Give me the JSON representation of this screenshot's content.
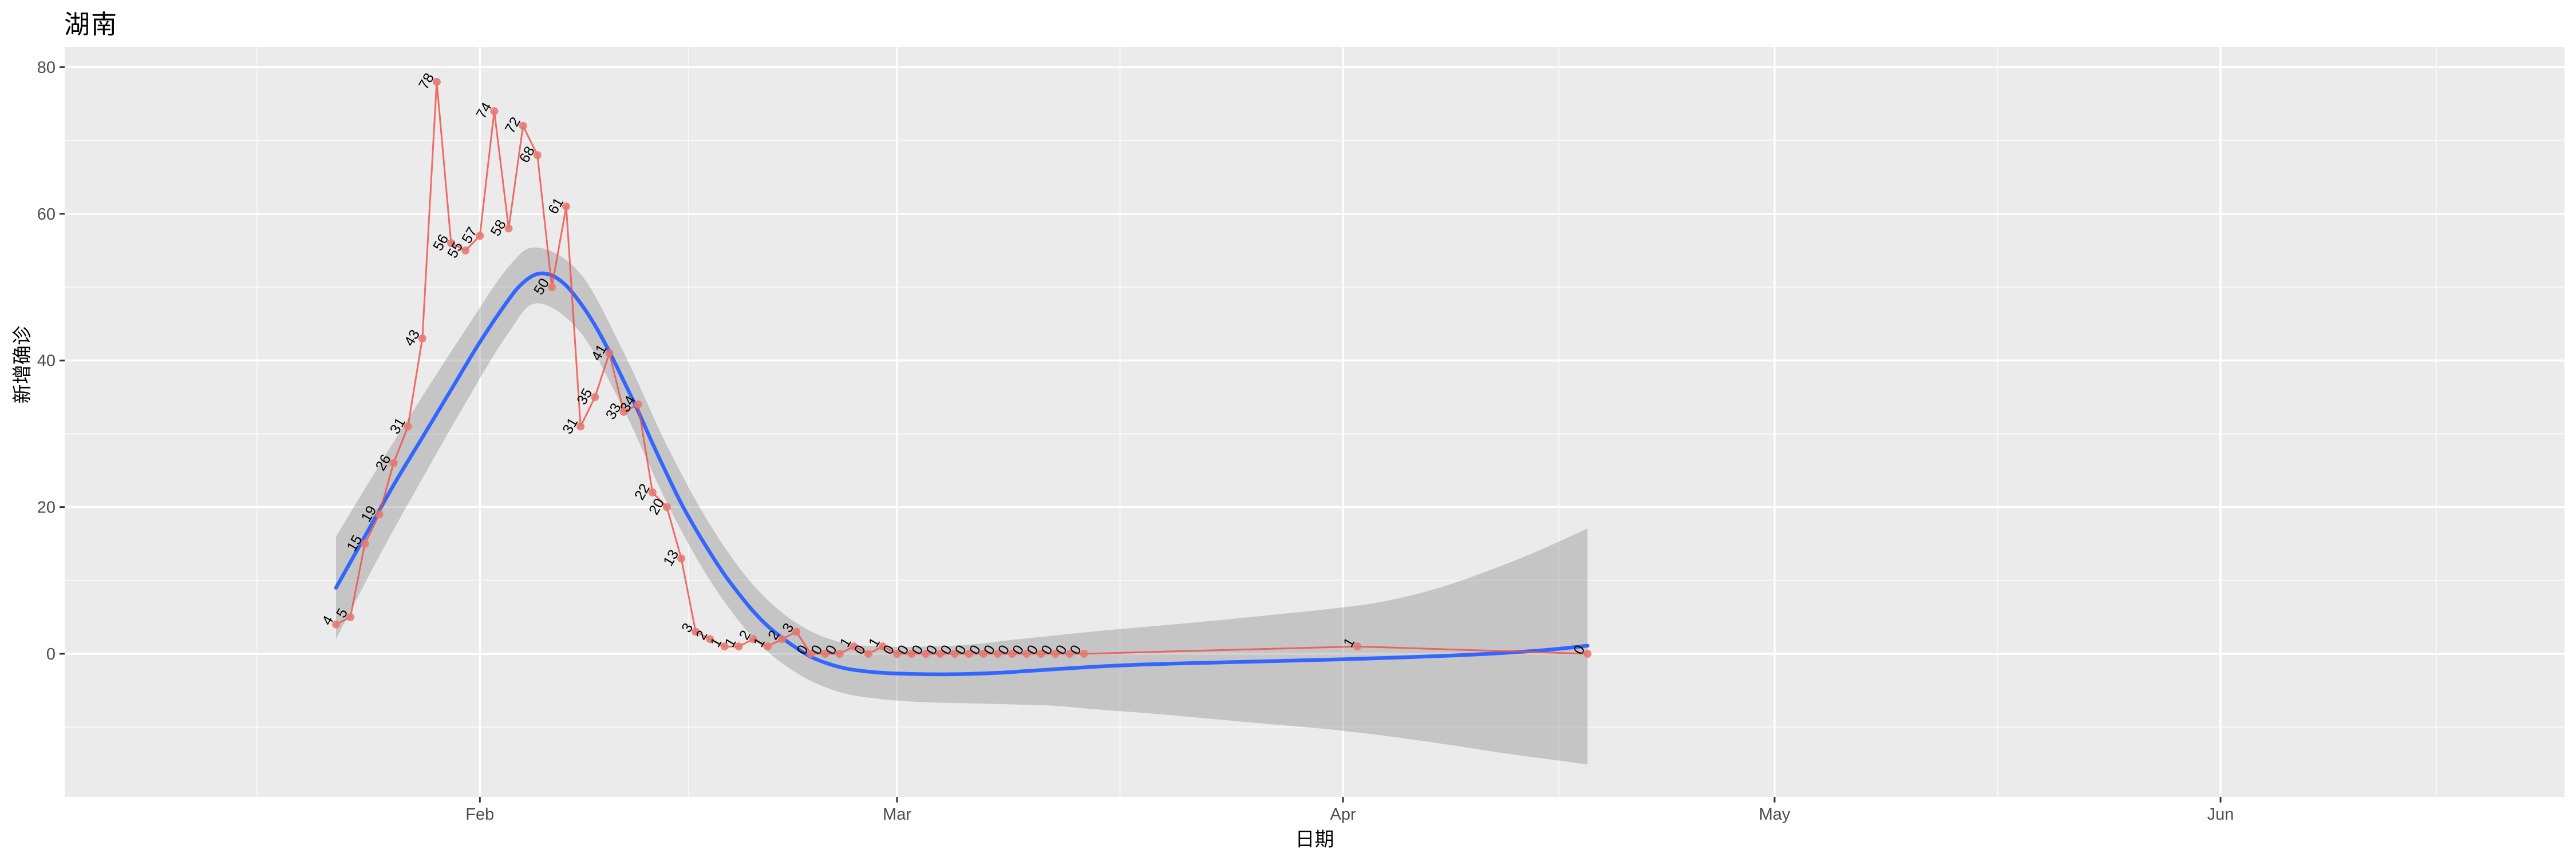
{
  "title": "湖南",
  "x_axis": {
    "title": "日期",
    "tick_labels": [
      "Feb",
      "Mar",
      "Apr",
      "May",
      "Jun"
    ]
  },
  "y_axis": {
    "title": "新增确诊",
    "tick_labels": [
      "0",
      "20",
      "40",
      "60",
      "80"
    ]
  },
  "colors": {
    "panel_bg": "#EBEBEB",
    "grid_major": "#FFFFFF",
    "grid_minor": "rgba(255,255,255,0.6)",
    "band": "rgba(120,120,120,0.33)",
    "smooth_line": "#3366FF",
    "data_line": "rgba(242,75,68,0.8)",
    "data_point": "rgba(229,120,112,0.88)",
    "point_label": "#000000",
    "tick_mark": "#333333",
    "tick_label": "#4D4D4D",
    "axis_title": "#000000",
    "title": "#000000"
  },
  "chart_data": {
    "type": "line",
    "title": "湖南",
    "xlabel": "日期",
    "ylabel": "新增确诊",
    "x_unit": "days (day 0 = first point, ~Jan 22; month ticks below)",
    "ylim": [
      -19.5,
      82.8
    ],
    "xlim_days": [
      -18.9,
      154.9
    ],
    "grid": true,
    "legend": false,
    "y_ticks": [
      0,
      20,
      40,
      60,
      80
    ],
    "y_minor": [
      -10,
      10,
      30,
      50,
      70
    ],
    "x_ticks": [
      {
        "label": "Feb",
        "day": 10
      },
      {
        "label": "Mar",
        "day": 39
      },
      {
        "label": "Apr",
        "day": 70
      },
      {
        "label": "May",
        "day": 100
      },
      {
        "label": "Jun",
        "day": 131
      }
    ],
    "x_minor_days": [
      -5.5,
      24.5,
      54.5,
      85,
      115.5,
      146
    ],
    "series": [
      {
        "name": "daily_new_confirmed",
        "type": "line+point+label",
        "points": [
          [
            0,
            4
          ],
          [
            1,
            5
          ],
          [
            2,
            15
          ],
          [
            3,
            19
          ],
          [
            4,
            26
          ],
          [
            5,
            31
          ],
          [
            6,
            43
          ],
          [
            7,
            78
          ],
          [
            8,
            56
          ],
          [
            9,
            55
          ],
          [
            10,
            57
          ],
          [
            11,
            74
          ],
          [
            12,
            58
          ],
          [
            13,
            72
          ],
          [
            14,
            68
          ],
          [
            15,
            50
          ],
          [
            16,
            61
          ],
          [
            17,
            31
          ],
          [
            18,
            35
          ],
          [
            19,
            41
          ],
          [
            20,
            33
          ],
          [
            21,
            34
          ],
          [
            22,
            22
          ],
          [
            23,
            20
          ],
          [
            24,
            13
          ],
          [
            25,
            3
          ],
          [
            26,
            2
          ],
          [
            27,
            1
          ],
          [
            28,
            1
          ],
          [
            29,
            2
          ],
          [
            30,
            1
          ],
          [
            31,
            2
          ],
          [
            32,
            3
          ],
          [
            33,
            0
          ],
          [
            34,
            0
          ],
          [
            35,
            0
          ],
          [
            36,
            1
          ],
          [
            37,
            0
          ],
          [
            38,
            1
          ],
          [
            39,
            0
          ],
          [
            40,
            0
          ],
          [
            41,
            0
          ],
          [
            42,
            0
          ],
          [
            43,
            0
          ],
          [
            44,
            0
          ],
          [
            45,
            0
          ],
          [
            46,
            0
          ],
          [
            47,
            0
          ],
          [
            48,
            0
          ],
          [
            49,
            0
          ],
          [
            50,
            0
          ],
          [
            51,
            0
          ],
          [
            52,
            0
          ],
          [
            71,
            1
          ],
          [
            87,
            0
          ]
        ]
      },
      {
        "name": "loess_smooth",
        "type": "line",
        "points": [
          [
            0,
            9.0
          ],
          [
            2,
            16
          ],
          [
            4,
            23
          ],
          [
            6,
            29.5
          ],
          [
            8,
            36
          ],
          [
            10,
            42.5
          ],
          [
            12,
            48.3
          ],
          [
            13,
            50.6
          ],
          [
            14,
            51.8
          ],
          [
            15,
            51.6
          ],
          [
            16,
            50.2
          ],
          [
            17,
            47.8
          ],
          [
            18,
            44.8
          ],
          [
            19,
            41.2
          ],
          [
            20,
            37.2
          ],
          [
            21,
            33.1
          ],
          [
            22,
            28.7
          ],
          [
            23,
            24.5
          ],
          [
            24,
            20.5
          ],
          [
            25,
            17.0
          ],
          [
            26,
            13.8
          ],
          [
            27,
            10.8
          ],
          [
            28,
            8.2
          ],
          [
            29,
            5.8
          ],
          [
            30,
            3.8
          ],
          [
            31,
            2.2
          ],
          [
            32,
            0.8
          ],
          [
            33,
            -0.4
          ],
          [
            34,
            -1.2
          ],
          [
            35,
            -1.8
          ],
          [
            36,
            -2.2
          ],
          [
            38,
            -2.6
          ],
          [
            40,
            -2.75
          ],
          [
            42,
            -2.8
          ],
          [
            44,
            -2.75
          ],
          [
            46,
            -2.6
          ],
          [
            48,
            -2.35
          ],
          [
            50,
            -2.1
          ],
          [
            52,
            -1.85
          ],
          [
            55,
            -1.55
          ],
          [
            58,
            -1.35
          ],
          [
            62,
            -1.15
          ],
          [
            66,
            -0.95
          ],
          [
            70,
            -0.75
          ],
          [
            74,
            -0.5
          ],
          [
            78,
            -0.2
          ],
          [
            81,
            0.1
          ],
          [
            84,
            0.5
          ],
          [
            87,
            1.1
          ]
        ]
      },
      {
        "name": "loess_confidence_band",
        "type": "band",
        "points": [
          [
            0,
            2.0,
            16.0
          ],
          [
            3,
            13.3,
            25.7
          ],
          [
            6,
            23.9,
            35.1
          ],
          [
            9,
            34.2,
            44.2
          ],
          [
            12,
            43.8,
            52.8
          ],
          [
            14,
            47.8,
            55.4
          ],
          [
            17,
            43.8,
            51.8
          ],
          [
            20,
            33.3,
            41.1
          ],
          [
            23,
            20.6,
            28.4
          ],
          [
            26,
            10.0,
            17.6
          ],
          [
            29,
            2.2,
            9.4
          ],
          [
            32,
            -2.6,
            4.2
          ],
          [
            35,
            -5.2,
            1.6
          ],
          [
            38,
            -6.2,
            1.0
          ],
          [
            41,
            -6.6,
            1.0
          ],
          [
            44,
            -6.75,
            1.25
          ],
          [
            47,
            -6.9,
            1.9
          ],
          [
            50,
            -7.1,
            2.5
          ],
          [
            53,
            -7.6,
            3.1
          ],
          [
            57,
            -8.2,
            3.8
          ],
          [
            61,
            -8.9,
            4.5
          ],
          [
            65,
            -9.6,
            5.3
          ],
          [
            69,
            -10.3,
            6.1
          ],
          [
            73,
            -11.2,
            7.2
          ],
          [
            77,
            -12.3,
            9.2
          ],
          [
            81,
            -13.5,
            12.0
          ],
          [
            84,
            -14.3,
            14.4
          ],
          [
            87,
            -15.1,
            17.1
          ]
        ]
      }
    ]
  }
}
